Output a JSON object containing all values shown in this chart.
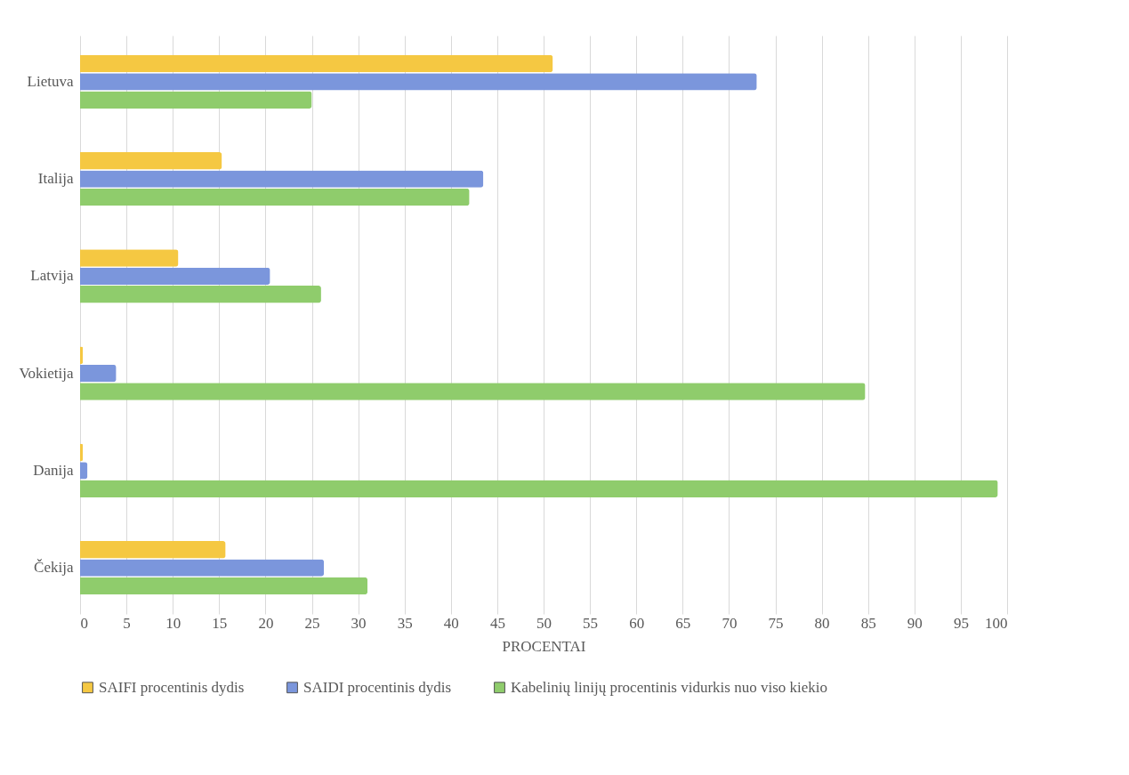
{
  "chart_data": {
    "type": "bar",
    "orientation": "horizontal",
    "xlabel": "PROCENTAI",
    "categories": [
      "Lietuva",
      "Italija",
      "Latvija",
      "Vokietija",
      "Danija",
      "Čekija"
    ],
    "series": [
      {
        "name": "SAIFI procentinis dydis",
        "color": "#f5c842",
        "values": [
          51,
          15.3,
          10.6,
          0.3,
          0.3,
          15.7
        ]
      },
      {
        "name": "SAIDI procentinis dydis",
        "color": "#7b96dc",
        "values": [
          73,
          43.5,
          20.5,
          3.9,
          0.8,
          26.3
        ]
      },
      {
        "name": "Kabelinių linijų procentinis vidurkis nuo viso kiekio",
        "color": "#8fcc6c",
        "values": [
          25,
          42,
          26,
          84.7,
          99,
          31
        ]
      }
    ],
    "xlim": [
      0,
      100
    ],
    "xticks": [
      0,
      5,
      10,
      15,
      20,
      25,
      30,
      35,
      40,
      45,
      50,
      55,
      60,
      65,
      70,
      75,
      80,
      85,
      90,
      95,
      100
    ],
    "grid": "x",
    "legend": "bottom"
  }
}
